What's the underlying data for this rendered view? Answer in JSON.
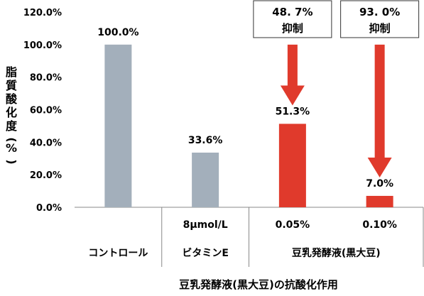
{
  "chart_data": {
    "type": "bar",
    "categories": [
      "コントロール",
      "ビタミンE",
      "豆乳発酵液(黒大豆)",
      "豆乳発酵液(黒大豆)"
    ],
    "category_groups": [
      {
        "sub": "",
        "label": "コントロール"
      },
      {
        "sub": "8μmol/L",
        "label": "ビタミンE"
      },
      {
        "subs": [
          "0.05%",
          "0.10%"
        ],
        "label": "豆乳発酵液(黒大豆)"
      }
    ],
    "values": [
      100.0,
      33.6,
      51.3,
      7.0
    ],
    "value_labels": [
      "100.0%",
      "33.6%",
      "51.3%",
      "7.0%"
    ],
    "bar_colors": [
      "#a3afbb",
      "#a3afbb",
      "#e03a2c",
      "#e03a2c"
    ],
    "ylabel": "脂質酸化度(%)",
    "ylim": [
      0,
      120
    ],
    "yticks": [
      "0.0%",
      "20.0%",
      "40.0%",
      "60.0%",
      "80.0%",
      "100.0%",
      "120.0%"
    ],
    "xlabel": "豆乳発酵液(黒大豆)の抗酸化作用",
    "annotations": [
      {
        "bar": 2,
        "value": "48.7%",
        "value_text": "48. 7%",
        "label": "抑制"
      },
      {
        "bar": 3,
        "value": "93.0%",
        "value_text": "93. 0%",
        "label": "抑制"
      }
    ],
    "grid": false,
    "legend": "none",
    "arrow_color": "#e03a2c",
    "axis_color": "#888888"
  }
}
